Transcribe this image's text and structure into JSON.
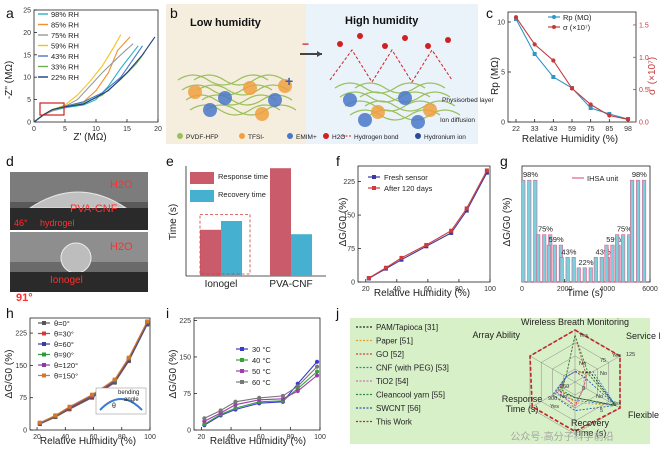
{
  "panels": {
    "a": {
      "letter": "a",
      "xlabel": "Z' (MΩ)",
      "ylabel": "-Z'' (MΩ)",
      "xticks": [
        "0",
        "5",
        "10",
        "15",
        "20"
      ],
      "yticks": [
        "0",
        "5",
        "10",
        "15",
        "20",
        "25"
      ],
      "legend": [
        "98% RH",
        "85% RH",
        "75% RH",
        "59% RH",
        "43% RH",
        "33% RH",
        "22% RH"
      ]
    },
    "b": {
      "letter": "b",
      "title_low": "Low humidity",
      "title_high": "High humidity",
      "label_layer": "Physisorbed layer",
      "label_diffusion": "Ion diffusion",
      "legend": [
        "PVDF-HFP",
        "TFSI-",
        "EMIM+",
        "H2O",
        "Hydrogen bond",
        "Hydronium ion"
      ]
    },
    "c": {
      "letter": "c",
      "xlabel": "Relative Humidity (%)",
      "ylabel_left": "Rp (MΩ)",
      "ylabel_right": "σ' (×10⁷)",
      "legend_rp": "Rp (MΩ)",
      "legend_sigma": "σ (×10⁷)",
      "xticks": [
        "22",
        "33",
        "43",
        "59",
        "75",
        "85",
        "98"
      ],
      "yticks_left": [
        "0",
        "5",
        "10"
      ],
      "yticks_right": [
        "0.0",
        "0.5",
        "1.0",
        "1.5"
      ]
    },
    "d": {
      "letter": "d",
      "label_h2o_top": "H2O",
      "label_pva": "PVA-CNF",
      "label_angle_top": "46°",
      "label_hydrogel": "hydrogel",
      "label_h2o_bottom": "H2O",
      "label_ionogel": "Ionogel",
      "label_angle_bottom": "91°"
    },
    "e": {
      "letter": "e",
      "ylabel": "Time (s)",
      "legend_response": "Response time",
      "legend_recovery": "Recovery time",
      "categories": [
        "Ionogel",
        "PVA-CNF"
      ]
    },
    "f": {
      "letter": "f",
      "xlabel": "Relative Humidity (%)",
      "ylabel": "ΔG/G0 (%)",
      "legend": [
        "Fresh sensor",
        "After 120 days"
      ],
      "xticks": [
        "20",
        "40",
        "60",
        "80",
        "100"
      ],
      "yticks": [
        "0",
        "75",
        "150",
        "225"
      ]
    },
    "g": {
      "letter": "g",
      "xlabel": "Time (s)",
      "ylabel": "ΔG/G0 (%)",
      "legend": "IHSA unit",
      "annotations": [
        "98%",
        "75%",
        "59%",
        "43%",
        "22%",
        "43%",
        "59%",
        "75%",
        "98%"
      ],
      "xticks": [
        "0",
        "2000",
        "4000",
        "6000"
      ]
    },
    "h": {
      "letter": "h",
      "xlabel": "Relative Humidity (%)",
      "ylabel": "ΔG/G0 (%)",
      "legend": [
        "θ=0°",
        "θ=30°",
        "θ=60°",
        "θ=90°",
        "θ=120°",
        "θ=150°"
      ],
      "inset_label_1": "bending",
      "inset_label_2": "angle",
      "inset_theta": "θ",
      "xticks": [
        "20",
        "40",
        "60",
        "80",
        "100"
      ],
      "yticks": [
        "0",
        "75",
        "150",
        "225"
      ]
    },
    "i": {
      "letter": "i",
      "xlabel": "Relative Humidity (%)",
      "ylabel": "ΔG/G0 (%)",
      "legend": [
        "30 °C",
        "40 °C",
        "50 °C",
        "60 °C"
      ],
      "xticks": [
        "20",
        "40",
        "60",
        "80",
        "100"
      ],
      "yticks": [
        "0",
        "75",
        "150",
        "225"
      ]
    },
    "j": {
      "letter": "j",
      "axes": [
        "Wireless Breath Monitoring",
        "Service Life",
        "Flexible",
        "Recovery Time (s)",
        "Response Time (s)",
        "Array Ability"
      ],
      "legend": [
        "PAM/Tapioca [31]",
        "Paper [51]",
        "GO [52]",
        "CNF (with PEG) [53]",
        "TiO2 [54]",
        "Cleancool yarn [55]",
        "SWCNT [56]",
        "This Work"
      ],
      "ring_labels": [
        "Yes",
        "No",
        "Yes",
        "No",
        "Yes",
        "No",
        "Yes",
        "No"
      ],
      "life_ticks": [
        "75",
        "125"
      ],
      "resp_ticks": [
        "360",
        "900"
      ],
      "rec_ticks": [
        "0",
        "5"
      ],
      "watermark": "公众号·高分子科学前沿"
    }
  },
  "chart_data": [
    {
      "id": "a",
      "type": "line",
      "title": "",
      "xlabel": "Z' (MΩ)",
      "ylabel": "-Z'' (MΩ)",
      "xlim": [
        0,
        20
      ],
      "ylim": [
        0,
        25
      ],
      "series": [
        {
          "name": "98% RH",
          "color": "#2ab0c8",
          "x": [
            0,
            1.5,
            3,
            5,
            8,
            10,
            12,
            14,
            16.8
          ],
          "y": [
            0,
            1.5,
            2.5,
            3.2,
            3.8,
            5,
            8,
            12,
            17
          ]
        },
        {
          "name": "85% RH",
          "color": "#f0902a",
          "x": [
            0,
            1.5,
            3,
            5,
            8,
            10,
            12,
            13.5,
            15.5
          ],
          "y": [
            0,
            1.5,
            2.6,
            3.4,
            4.5,
            7,
            11,
            16,
            19
          ]
        },
        {
          "name": "75% RH",
          "color": "#9a9a9a",
          "x": [
            0,
            1.5,
            3,
            5,
            7,
            9,
            11,
            14,
            16
          ],
          "y": [
            0,
            1.6,
            2.7,
            3.5,
            5,
            8,
            11,
            15,
            17.5
          ]
        },
        {
          "name": "59% RH",
          "color": "#f2c31e",
          "x": [
            0,
            1.5,
            3,
            5,
            7,
            9,
            11,
            13,
            14
          ],
          "y": [
            0,
            1.6,
            2.8,
            3.8,
            6,
            9,
            12.5,
            17,
            19.5
          ]
        },
        {
          "name": "43% RH",
          "color": "#4a78c8",
          "x": [
            0,
            1.5,
            3,
            5,
            8,
            11,
            14,
            16,
            17.5
          ],
          "y": [
            0,
            1.6,
            2.8,
            3.5,
            4.5,
            6.5,
            10,
            14,
            17
          ]
        },
        {
          "name": "33% RH",
          "color": "#6ab04c",
          "x": [
            0,
            1.5,
            3,
            5,
            8,
            11,
            14,
            16.5,
            17.8
          ],
          "y": [
            0,
            1.6,
            2.8,
            3.4,
            4.2,
            6,
            9.5,
            13,
            15.5
          ]
        },
        {
          "name": "22% RH",
          "color": "#1d3f7a",
          "x": [
            0,
            1.5,
            3,
            5,
            8,
            12,
            15,
            17.5,
            19.5
          ],
          "y": [
            0,
            1.6,
            2.8,
            3.4,
            4,
            7,
            11,
            15,
            19
          ]
        }
      ]
    },
    {
      "id": "c",
      "type": "line",
      "xlabel": "Relative Humidity (%)",
      "ylabel": "Rp (MΩ)",
      "ylabel_right": "σ' (×10⁷)",
      "categories": [
        "22",
        "33",
        "43",
        "59",
        "75",
        "85",
        "98"
      ],
      "ylim": [
        0,
        11
      ],
      "ylim_right": [
        0,
        1.7
      ],
      "series": [
        {
          "name": "Rp (MΩ)",
          "axis": "left",
          "color": "#2e96c8",
          "values": [
            10.3,
            6.8,
            4.5,
            3.4,
            1.4,
            0.8,
            0.3
          ]
        },
        {
          "name": "σ (×10⁷)",
          "axis": "right",
          "color": "#c43b3b",
          "values": [
            1.62,
            1.2,
            0.95,
            0.52,
            0.27,
            0.1,
            0.04
          ]
        }
      ]
    },
    {
      "id": "e",
      "type": "bar",
      "ylabel": "Time (s)",
      "categories": [
        "Ionogel",
        "PVA-CNF"
      ],
      "ylim": [
        0,
        100
      ],
      "series": [
        {
          "name": "Response time",
          "color": "#c95b6b",
          "values": [
            42,
            98
          ]
        },
        {
          "name": "Recovery time",
          "color": "#45b0cf",
          "values": [
            50,
            38
          ]
        }
      ]
    },
    {
      "id": "f",
      "type": "line",
      "xlabel": "Relative Humidity (%)",
      "ylabel": "ΔG/G0 (%)",
      "x": [
        22,
        33,
        43,
        59,
        75,
        85,
        98
      ],
      "xlim": [
        15,
        100
      ],
      "ylim": [
        0,
        260
      ],
      "series": [
        {
          "name": "Fresh sensor",
          "color": "#3a3aa0",
          "values": [
            8,
            30,
            50,
            80,
            110,
            160,
            245
          ]
        },
        {
          "name": "After 120 days",
          "color": "#d03a3a",
          "values": [
            9,
            32,
            54,
            83,
            115,
            165,
            250
          ]
        }
      ]
    },
    {
      "id": "g",
      "type": "bar",
      "xlabel": "Time (s)",
      "ylabel": "ΔG/G0 (%)",
      "xlim": [
        0,
        6000
      ],
      "ylim": [
        0,
        245
      ],
      "pulses": [
        {
          "t": 400,
          "value": 215,
          "label": "98%"
        },
        {
          "t": 1100,
          "value": 100,
          "label": "75%"
        },
        {
          "t": 1600,
          "value": 78,
          "label": "59%"
        },
        {
          "t": 2200,
          "value": 52,
          "label": "43%"
        },
        {
          "t": 3000,
          "value": 30,
          "label": "22%"
        },
        {
          "t": 3800,
          "value": 52,
          "label": "43%"
        },
        {
          "t": 4300,
          "value": 78,
          "label": "59%"
        },
        {
          "t": 4800,
          "value": 100,
          "label": "75%"
        },
        {
          "t": 5500,
          "value": 215,
          "label": "98%"
        }
      ],
      "series": [
        {
          "name": "IHSA unit",
          "color": "#e0608a"
        }
      ]
    },
    {
      "id": "h",
      "type": "line",
      "xlabel": "Relative Humidity (%)",
      "ylabel": "ΔG/G0 (%)",
      "x": [
        22,
        33,
        43,
        59,
        75,
        85,
        98
      ],
      "xlim": [
        15,
        100
      ],
      "ylim": [
        0,
        260
      ],
      "series": [
        {
          "name": "θ=0°",
          "color": "#555555",
          "values": [
            14,
            30,
            48,
            75,
            110,
            160,
            245
          ]
        },
        {
          "name": "θ=30°",
          "color": "#d03a3a",
          "values": [
            15,
            31,
            50,
            77,
            112,
            162,
            248
          ]
        },
        {
          "name": "θ=60°",
          "color": "#3a3aa0",
          "values": [
            15,
            32,
            51,
            78,
            113,
            163,
            246
          ]
        },
        {
          "name": "θ=90°",
          "color": "#2a9a3a",
          "values": [
            16,
            32,
            52,
            79,
            114,
            165,
            249
          ]
        },
        {
          "name": "θ=120°",
          "color": "#8a3aa0",
          "values": [
            16,
            33,
            53,
            80,
            115,
            166,
            250
          ]
        },
        {
          "name": "θ=150°",
          "color": "#d07a2a",
          "values": [
            17,
            34,
            54,
            82,
            117,
            168,
            252
          ]
        }
      ]
    },
    {
      "id": "i",
      "type": "line",
      "xlabel": "Relative Humidity (%)",
      "ylabel": "ΔG/G0 (%)",
      "x": [
        22,
        33,
        43,
        59,
        75,
        85,
        98
      ],
      "xlim": [
        15,
        100
      ],
      "ylim": [
        0,
        230
      ],
      "series": [
        {
          "name": "30 °C",
          "color": "#3a3ad0",
          "values": [
            10,
            30,
            42,
            55,
            58,
            95,
            140
          ]
        },
        {
          "name": "40 °C",
          "color": "#3aa03a",
          "values": [
            12,
            32,
            45,
            58,
            60,
            85,
            120
          ]
        },
        {
          "name": "50 °C",
          "color": "#a03ab0",
          "values": [
            18,
            35,
            52,
            62,
            64,
            80,
            112
          ]
        },
        {
          "name": "60 °C",
          "color": "#777777",
          "values": [
            24,
            40,
            58,
            66,
            70,
            90,
            130
          ]
        }
      ]
    },
    {
      "id": "j",
      "type": "radar",
      "axes": [
        "Wireless Breath Monitoring",
        "Service Life",
        "Flexible",
        "Recovery Time (s)",
        "Response Time (s)",
        "Array Ability"
      ],
      "series": [
        {
          "name": "PAM/Tapioca [31]",
          "color": "#222222",
          "values": [
            0.2,
            0.35,
            0.9,
            0.3,
            0.35,
            0.2
          ]
        },
        {
          "name": "Paper [51]",
          "color": "#e0a030",
          "values": [
            0.2,
            0.3,
            0.9,
            0.4,
            0.3,
            0.2
          ]
        },
        {
          "name": "GO [52]",
          "color": "#d04040",
          "values": [
            0.9,
            0.25,
            0.2,
            0.45,
            0.4,
            0.2
          ]
        },
        {
          "name": "CNF (with PEG) [53]",
          "color": "#3a7ad0",
          "values": [
            0.2,
            0.4,
            0.9,
            0.35,
            0.45,
            0.2
          ]
        },
        {
          "name": "TiO2 [54]",
          "color": "#d070c0",
          "values": [
            0.2,
            0.2,
            0.2,
            0.5,
            0.35,
            0.2
          ]
        },
        {
          "name": "Cleancool yarn [55]",
          "color": "#2a8a3a",
          "values": [
            0.9,
            0.3,
            0.9,
            0.3,
            0.3,
            0.2
          ]
        },
        {
          "name": "SWCNT [56]",
          "color": "#2a5ab0",
          "values": [
            0.2,
            0.2,
            0.9,
            0.55,
            0.5,
            0.2
          ]
        },
        {
          "name": "This Work",
          "color": "#c02828",
          "values": [
            1.0,
            1.0,
            1.0,
            0.95,
            0.95,
            1.0
          ]
        }
      ]
    }
  ]
}
